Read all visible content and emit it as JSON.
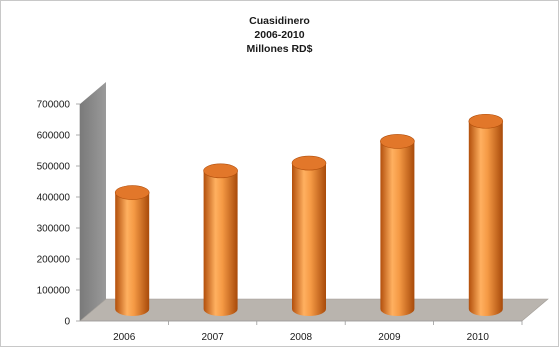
{
  "chart_data": {
    "type": "bar",
    "title_lines": [
      "Cuasidinero",
      "2006-2010",
      "Millones RD$"
    ],
    "categories": [
      "2006",
      "2007",
      "2008",
      "2009",
      "2010"
    ],
    "values": [
      395000,
      465000,
      490000,
      560000,
      625000
    ],
    "ylim": [
      0,
      700000
    ],
    "yticks": [
      0,
      100000,
      200000,
      300000,
      400000,
      500000,
      600000,
      700000
    ],
    "ytick_labels": [
      "0",
      "100000",
      "200000",
      "300000",
      "400000",
      "500000",
      "600000",
      "700000"
    ],
    "grid": false,
    "legend": "none",
    "style": "3d-cylinder",
    "colors": {
      "bar_body": "#f08a30",
      "bar_light": "#ffd09a",
      "bar_dark": "#b24f0c",
      "bar_top": "#e2772a",
      "back_wall": "#8c8c8c",
      "floor": "#b9b4ae"
    }
  }
}
